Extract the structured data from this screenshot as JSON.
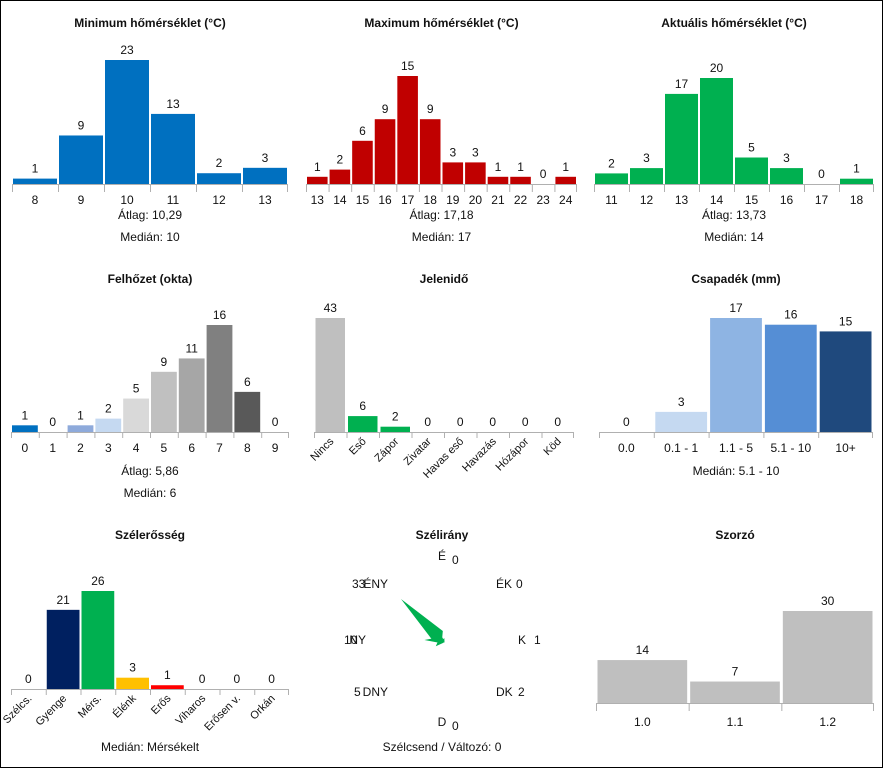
{
  "chart_data": [
    {
      "id": "min_temp",
      "type": "bar",
      "title": "Minimum hőmérséklet (°C)",
      "categories": [
        "8",
        "9",
        "10",
        "11",
        "12",
        "13"
      ],
      "values": [
        1,
        9,
        23,
        13,
        2,
        3
      ],
      "colors": [
        "#0070c0"
      ],
      "ylim": [
        0,
        23
      ],
      "stats": [
        {
          "label": "Átlag:",
          "value": "10,29"
        },
        {
          "label": "Medián:",
          "value": "10"
        }
      ]
    },
    {
      "id": "max_temp",
      "type": "bar",
      "title": "Maximum hőmérséklet (°C)",
      "categories": [
        "13",
        "14",
        "15",
        "16",
        "17",
        "18",
        "19",
        "20",
        "21",
        "22",
        "23",
        "24"
      ],
      "values": [
        1,
        2,
        6,
        9,
        15,
        9,
        3,
        3,
        1,
        1,
        0,
        1
      ],
      "colors": [
        "#c00000"
      ],
      "ylim": [
        0,
        15
      ],
      "stats": [
        {
          "label": "Átlag:",
          "value": "17,18"
        },
        {
          "label": "Medián:",
          "value": "17"
        }
      ]
    },
    {
      "id": "cur_temp",
      "type": "bar",
      "title": "Aktuális hőmérséklet (°C)",
      "categories": [
        "11",
        "12",
        "13",
        "14",
        "15",
        "16",
        "17",
        "18"
      ],
      "values": [
        2,
        3,
        17,
        20,
        5,
        3,
        0,
        1
      ],
      "colors": [
        "#00b050"
      ],
      "ylim": [
        0,
        20
      ],
      "stats": [
        {
          "label": "Átlag:",
          "value": "13,73"
        },
        {
          "label": "Medián:",
          "value": "14"
        }
      ]
    },
    {
      "id": "cloud",
      "type": "bar",
      "title": "Felhőzet (okta)",
      "categories": [
        "0",
        "1",
        "2",
        "3",
        "4",
        "5",
        "6",
        "7",
        "8",
        "9"
      ],
      "values": [
        1,
        0,
        1,
        2,
        5,
        9,
        11,
        16,
        6,
        0
      ],
      "colors": [
        "#0070c0",
        "#5b9bd5",
        "#8eaadb",
        "#c5d9f1",
        "#d9d9d9",
        "#c0c0c0",
        "#a6a6a6",
        "#808080",
        "#595959",
        "#404040"
      ],
      "ylim": [
        0,
        16
      ],
      "stats": [
        {
          "label": "Átlag:",
          "value": "5,86"
        },
        {
          "label": "Medián:",
          "value": "6"
        }
      ]
    },
    {
      "id": "weather",
      "type": "bar",
      "title": "Jelenidő",
      "categories": [
        "Nincs",
        "Eső",
        "Zápor",
        "Zivatar",
        "Havas eső",
        "Havazás",
        "Hózápor",
        "Köd"
      ],
      "values": [
        43,
        6,
        2,
        0,
        0,
        0,
        0,
        0
      ],
      "colors": [
        "#bfbfbf",
        "#00b050",
        "#00b050",
        "#00b050",
        "#00b050",
        "#00b050",
        "#00b050",
        "#00b050"
      ],
      "ylim": [
        0,
        43
      ],
      "rotated_labels": true,
      "stats": []
    },
    {
      "id": "precip",
      "type": "bar",
      "title": "Csapadék (mm)",
      "categories": [
        "0.0",
        "0.1 - 1",
        "1.1 - 5",
        "5.1 - 10",
        "10+"
      ],
      "values": [
        0,
        3,
        17,
        16,
        15
      ],
      "colors": [
        "#c5d9f1",
        "#c5d9f1",
        "#8eb4e3",
        "#558ed5",
        "#1f497d"
      ],
      "ylim": [
        0,
        17
      ],
      "stats": [
        {
          "label": "Medián:",
          "value": "5.1 - 10"
        }
      ]
    },
    {
      "id": "wind_force",
      "type": "bar",
      "title": "Szélerősség",
      "categories": [
        "Szélcs.",
        "Gyenge",
        "Mérs.",
        "Élénk",
        "Erős",
        "Viharos",
        "Erősen v.",
        "Orkán"
      ],
      "values": [
        0,
        21,
        26,
        3,
        1,
        0,
        0,
        0
      ],
      "colors": [
        "#002060",
        "#002060",
        "#00b050",
        "#ffc000",
        "#ff0000",
        "#c00000",
        "#c00000",
        "#c00000"
      ],
      "ylim": [
        0,
        26
      ],
      "rotated_labels": true,
      "stats": [
        {
          "label": "Medián:",
          "value": "Mérsékelt"
        }
      ]
    },
    {
      "id": "multiplier",
      "type": "bar",
      "title": "Szorzó",
      "categories": [
        "1.0",
        "1.1",
        "1.2"
      ],
      "values": [
        14,
        7,
        30
      ],
      "colors": [
        "#bfbfbf"
      ],
      "ylim": [
        0,
        30
      ],
      "stats": []
    }
  ],
  "wind_direction": {
    "title": "Szélirány",
    "directions": [
      {
        "dir": "É",
        "value": 0
      },
      {
        "dir": "ÉK",
        "value": 0
      },
      {
        "dir": "K",
        "value": 1
      },
      {
        "dir": "DK",
        "value": 2
      },
      {
        "dir": "D",
        "value": 0
      },
      {
        "dir": "DNY",
        "value": 5
      },
      {
        "dir": "NY",
        "value": 10
      },
      {
        "dir": "ÉNY",
        "value": 33
      }
    ],
    "color": "#00b050",
    "calm_label": "Szélcsend / Változó:",
    "calm_value": "0"
  }
}
